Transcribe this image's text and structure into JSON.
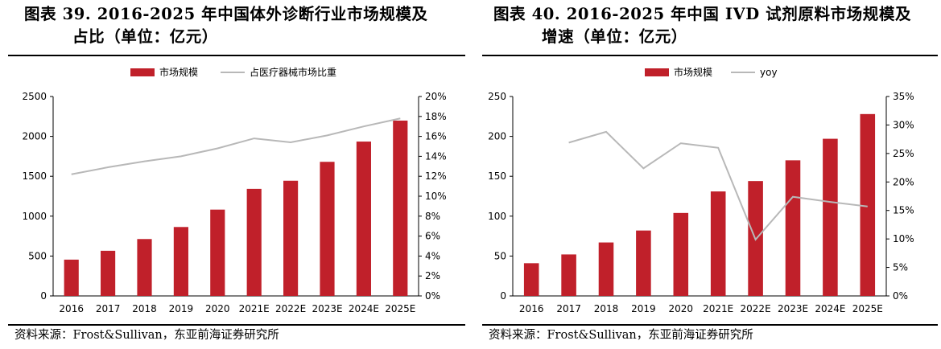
{
  "chart_data": [
    {
      "type": "bar",
      "title_line1": "图表 39. 2016-2025 年中国体外诊断行业市场规模及",
      "title_line2": "占比（单位：亿元）",
      "categories": [
        "2016",
        "2017",
        "2018",
        "2019",
        "2020",
        "2021E",
        "2022E",
        "2023E",
        "2024E",
        "2025E"
      ],
      "series": [
        {
          "name": "市场规模",
          "type": "bar",
          "axis": "left",
          "color": "#c0202a",
          "values": [
            455,
            566,
            713,
            864,
            1082,
            1342,
            1444,
            1681,
            1935,
            2198
          ]
        },
        {
          "name": "占医疗器械市场比重",
          "type": "line",
          "axis": "right",
          "color": "#b8b8b8",
          "values": [
            12.2,
            12.9,
            13.5,
            14.0,
            14.8,
            15.8,
            15.4,
            16.1,
            17.0,
            17.8
          ]
        }
      ],
      "ylim_left": [
        0,
        2500
      ],
      "yticks_left": [
        "0",
        "500",
        "1000",
        "1500",
        "2000",
        "2500"
      ],
      "ylim_right": [
        0,
        20
      ],
      "yticks_right": [
        "0%",
        "2%",
        "4%",
        "6%",
        "8%",
        "10%",
        "12%",
        "14%",
        "16%",
        "18%",
        "20%"
      ],
      "legend_position": "top",
      "grid": false,
      "source": "资料来源：Frost&Sullivan，东亚前海证券研究所"
    },
    {
      "type": "bar",
      "title_line1": "图表 40. 2016-2025 年中国 IVD 试剂原料市场规模及",
      "title_line2": "增速（单位：亿元）",
      "categories": [
        "2016",
        "2017",
        "2018",
        "2019",
        "2020",
        "2021E",
        "2022E",
        "2023E",
        "2024E",
        "2025E"
      ],
      "series": [
        {
          "name": "市场规模",
          "type": "bar",
          "axis": "left",
          "color": "#c0202a",
          "values": [
            41,
            52,
            67,
            82,
            104,
            131,
            144,
            170,
            197,
            228
          ]
        },
        {
          "name": "yoy",
          "type": "line",
          "axis": "right",
          "color": "#b8b8b8",
          "values": [
            null,
            26.9,
            28.8,
            22.4,
            26.8,
            26.0,
            9.9,
            17.4,
            16.5,
            15.7
          ]
        }
      ],
      "ylim_left": [
        0,
        250
      ],
      "yticks_left": [
        "0",
        "50",
        "100",
        "150",
        "200",
        "250"
      ],
      "ylim_right": [
        0,
        35
      ],
      "yticks_right": [
        "0%",
        "5%",
        "10%",
        "15%",
        "20%",
        "25%",
        "30%",
        "35%"
      ],
      "legend_position": "top",
      "grid": false,
      "source": "资料来源：Frost&Sullivan，东亚前海证券研究所"
    }
  ]
}
